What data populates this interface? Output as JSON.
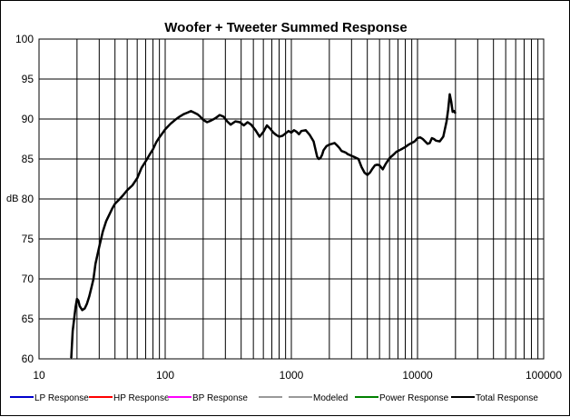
{
  "chart_data": {
    "type": "line",
    "title": "Woofer + Tweeter    Summed Response",
    "ylabel": "dB",
    "xlabel": "",
    "xscale": "log",
    "xlim": [
      10,
      100000
    ],
    "ylim": [
      60,
      100
    ],
    "grid": true,
    "x_ticks": [
      "10",
      "100",
      "1000",
      "10000",
      "100000"
    ],
    "y_ticks": [
      "60",
      "65",
      "70",
      "75",
      "80",
      "85",
      "90",
      "95",
      "100"
    ],
    "legend_position": "bottom",
    "legend": [
      {
        "name": "LP Response",
        "color": "#0000cc"
      },
      {
        "name": "HP Response",
        "color": "#ff0000"
      },
      {
        "name": "BP Response",
        "color": "#ff00ff"
      },
      {
        "name": "",
        "color": "#999999"
      },
      {
        "name": "Modeled",
        "color": "#999999"
      },
      {
        "name": "Power Response",
        "color": "#008000"
      },
      {
        "name": "Total Response",
        "color": "#000000"
      }
    ],
    "series": [
      {
        "name": "Total Response",
        "color": "#000000",
        "x": [
          18,
          18.5,
          19,
          19.5,
          20,
          20.5,
          21,
          22,
          23,
          24,
          25,
          26,
          27,
          28,
          30,
          32,
          34,
          36,
          38,
          40,
          43,
          46,
          50,
          55,
          60,
          65,
          70,
          75,
          80,
          85,
          90,
          95,
          100,
          110,
          120,
          130,
          140,
          150,
          160,
          170,
          180,
          190,
          200,
          215,
          230,
          250,
          270,
          290,
          310,
          330,
          360,
          390,
          420,
          450,
          480,
          520,
          560,
          600,
          640,
          680,
          720,
          760,
          800,
          850,
          900,
          950,
          1000,
          1050,
          1100,
          1150,
          1200,
          1300,
          1400,
          1500,
          1600,
          1650,
          1700,
          1750,
          1800,
          1900,
          2000,
          2100,
          2200,
          2300,
          2400,
          2500,
          2600,
          2700,
          2800,
          3000,
          3200,
          3400,
          3600,
          3800,
          4000,
          4200,
          4400,
          4600,
          4800,
          5000,
          5300,
          5600,
          6000,
          6400,
          6800,
          7200,
          7600,
          8000,
          8500,
          9000,
          9500,
          10000,
          10500,
          11000,
          11500,
          12000,
          12500,
          13000,
          13500,
          14000,
          15000,
          16000,
          17000,
          17500,
          18000,
          18500,
          19000,
          19500,
          20000
        ],
        "y": [
          60.1,
          63.5,
          65,
          66.5,
          67.5,
          67.3,
          66.6,
          66.1,
          66.3,
          66.9,
          67.8,
          68.9,
          70.0,
          71.9,
          74.0,
          75.9,
          77.2,
          78.0,
          78.8,
          79.4,
          79.9,
          80.4,
          81.1,
          81.7,
          82.6,
          83.9,
          84.7,
          85.5,
          86.2,
          87.1,
          87.7,
          88.2,
          88.7,
          89.4,
          89.9,
          90.3,
          90.6,
          90.8,
          91.0,
          90.8,
          90.6,
          90.3,
          89.9,
          89.6,
          89.8,
          90.1,
          90.5,
          90.3,
          89.7,
          89.3,
          89.7,
          89.6,
          89.2,
          89.6,
          89.3,
          88.6,
          87.8,
          88.4,
          89.2,
          88.8,
          88.3,
          88.0,
          87.8,
          87.9,
          88.2,
          88.5,
          88.3,
          88.6,
          88.4,
          88.1,
          88.5,
          88.6,
          88.0,
          87.2,
          85.3,
          85.0,
          85.1,
          85.5,
          86.1,
          86.6,
          86.8,
          86.9,
          87.0,
          86.7,
          86.4,
          86.0,
          85.9,
          85.8,
          85.6,
          85.4,
          85.2,
          85.0,
          84.0,
          83.3,
          83.0,
          83.3,
          83.8,
          84.2,
          84.3,
          84.2,
          83.7,
          84.4,
          85.1,
          85.5,
          85.9,
          86.1,
          86.3,
          86.5,
          86.8,
          87.0,
          87.2,
          87.6,
          87.7,
          87.5,
          87.2,
          86.9,
          87.0,
          87.6,
          87.5,
          87.3,
          87.2,
          87.8,
          89.7,
          91.2,
          93.1,
          92.2,
          90.9,
          91.0,
          90.7
        ]
      }
    ]
  }
}
